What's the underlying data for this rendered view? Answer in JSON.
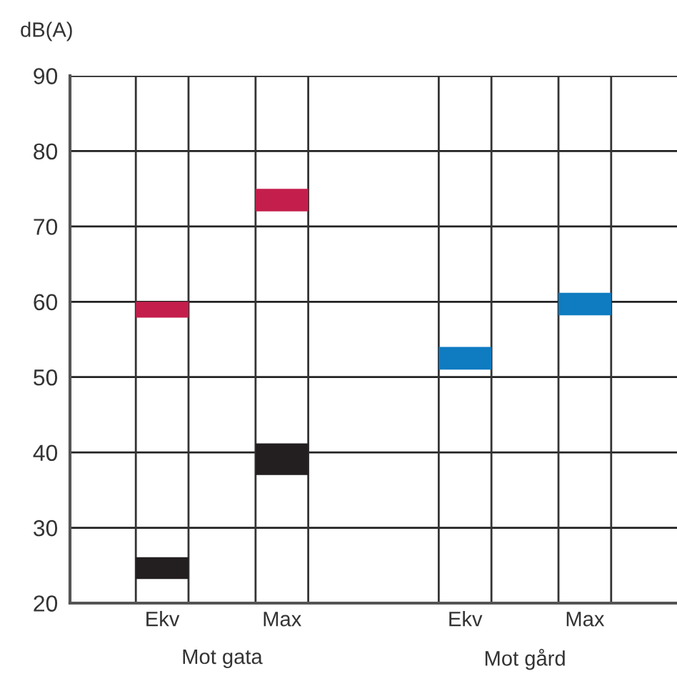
{
  "chart_data": {
    "type": "bar",
    "ylabel": "dB(A)",
    "categories": [
      "Ekv",
      "Max",
      "Ekv",
      "Max"
    ],
    "series": [
      {
        "color": "#c41e4c",
        "values": [
          2.1,
          3.0,
          null,
          null
        ],
        "base": [
          57.9,
          72.0,
          null,
          null
        ]
      },
      {
        "color": "#231f20",
        "values": [
          2.9,
          4.2,
          null,
          null
        ],
        "base": [
          23.2,
          37.0,
          null,
          null
        ]
      },
      {
        "color": "#0f7bc1",
        "values": [
          null,
          null,
          3.0,
          3.0
        ],
        "base": [
          null,
          null,
          51.0,
          58.2
        ]
      }
    ],
    "ylim": [
      20,
      90
    ],
    "yticks": [
      20,
      30,
      40,
      50,
      60,
      70,
      80,
      90
    ],
    "grid": "y",
    "legend": false,
    "annotations": [
      "Mot gata",
      "Mot gård"
    ]
  }
}
